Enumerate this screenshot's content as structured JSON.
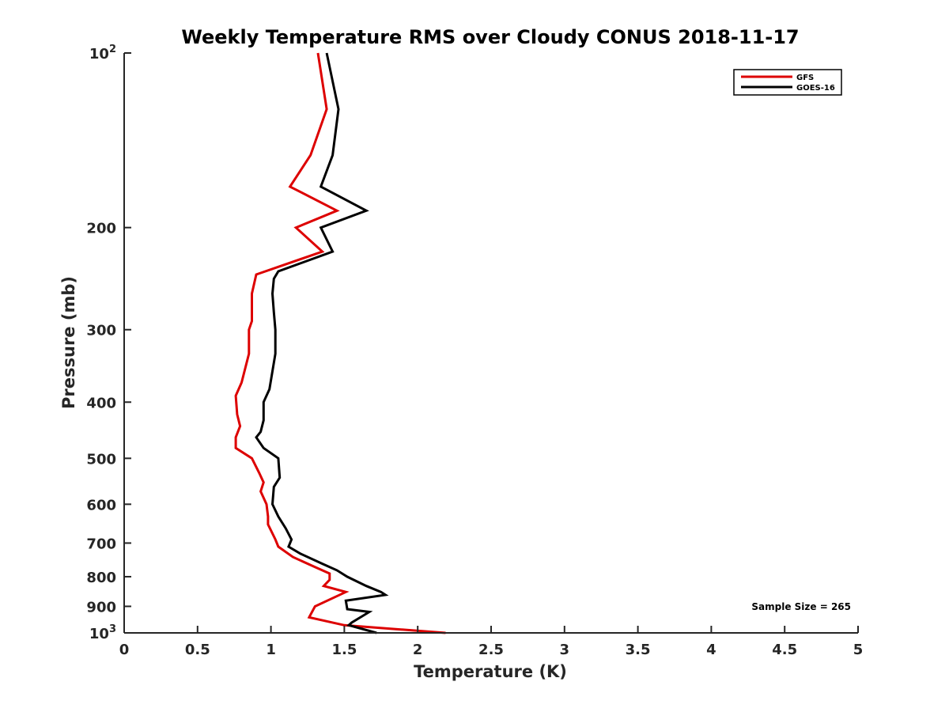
{
  "chart_data": {
    "type": "line",
    "title": "Weekly Temperature RMS over Cloudy CONUS 2018-11-17",
    "xlabel": "Temperature (K)",
    "ylabel": "Pressure (mb)",
    "xlim": [
      0,
      5
    ],
    "ylim": [
      100,
      1000
    ],
    "y_scale": "log",
    "y_inverted": true,
    "x_ticks": [
      "0",
      "0.5",
      "1",
      "1.5",
      "2",
      "2.5",
      "3",
      "3.5",
      "4",
      "4.5",
      "5"
    ],
    "x_tick_values": [
      0,
      0.5,
      1,
      1.5,
      2,
      2.5,
      3,
      3.5,
      4,
      4.5,
      5
    ],
    "y_ticks": [
      {
        "value": 100,
        "base": "10",
        "exp": "2"
      },
      {
        "value": 200,
        "label": "200"
      },
      {
        "value": 300,
        "label": "300"
      },
      {
        "value": 400,
        "label": "400"
      },
      {
        "value": 500,
        "label": "500"
      },
      {
        "value": 600,
        "label": "600"
      },
      {
        "value": 700,
        "label": "700"
      },
      {
        "value": 800,
        "label": "800"
      },
      {
        "value": 900,
        "label": "900"
      },
      {
        "value": 1000,
        "base": "10",
        "exp": "3"
      }
    ],
    "grid": false,
    "legend_position": "top-right",
    "annotation": "Sample Size = 265",
    "series": [
      {
        "name": "GFS",
        "color": "#dd0000",
        "points": [
          {
            "x": 1.32,
            "y": 100
          },
          {
            "x": 1.38,
            "y": 125
          },
          {
            "x": 1.27,
            "y": 150
          },
          {
            "x": 1.13,
            "y": 170
          },
          {
            "x": 1.45,
            "y": 187
          },
          {
            "x": 1.17,
            "y": 200
          },
          {
            "x": 1.35,
            "y": 220
          },
          {
            "x": 0.9,
            "y": 241
          },
          {
            "x": 0.87,
            "y": 260
          },
          {
            "x": 0.87,
            "y": 290
          },
          {
            "x": 0.85,
            "y": 300
          },
          {
            "x": 0.85,
            "y": 330
          },
          {
            "x": 0.8,
            "y": 370
          },
          {
            "x": 0.76,
            "y": 390
          },
          {
            "x": 0.77,
            "y": 420
          },
          {
            "x": 0.79,
            "y": 440
          },
          {
            "x": 0.76,
            "y": 460
          },
          {
            "x": 0.76,
            "y": 480
          },
          {
            "x": 0.87,
            "y": 500
          },
          {
            "x": 0.92,
            "y": 530
          },
          {
            "x": 0.95,
            "y": 550
          },
          {
            "x": 0.93,
            "y": 570
          },
          {
            "x": 0.97,
            "y": 600
          },
          {
            "x": 0.98,
            "y": 630
          },
          {
            "x": 0.98,
            "y": 650
          },
          {
            "x": 1.03,
            "y": 690
          },
          {
            "x": 1.05,
            "y": 710
          },
          {
            "x": 1.15,
            "y": 740
          },
          {
            "x": 1.3,
            "y": 770
          },
          {
            "x": 1.4,
            "y": 790
          },
          {
            "x": 1.4,
            "y": 810
          },
          {
            "x": 1.36,
            "y": 830
          },
          {
            "x": 1.51,
            "y": 850
          },
          {
            "x": 1.3,
            "y": 900
          },
          {
            "x": 1.26,
            "y": 940
          },
          {
            "x": 1.5,
            "y": 970
          },
          {
            "x": 1.85,
            "y": 985
          },
          {
            "x": 2.19,
            "y": 1000
          }
        ]
      },
      {
        "name": "GOES-16",
        "color": "#000000",
        "points": [
          {
            "x": 1.38,
            "y": 100
          },
          {
            "x": 1.46,
            "y": 125
          },
          {
            "x": 1.42,
            "y": 150
          },
          {
            "x": 1.34,
            "y": 170
          },
          {
            "x": 1.65,
            "y": 187
          },
          {
            "x": 1.34,
            "y": 200
          },
          {
            "x": 1.42,
            "y": 220
          },
          {
            "x": 1.05,
            "y": 238
          },
          {
            "x": 1.02,
            "y": 245
          },
          {
            "x": 1.01,
            "y": 260
          },
          {
            "x": 1.02,
            "y": 280
          },
          {
            "x": 1.03,
            "y": 300
          },
          {
            "x": 1.03,
            "y": 330
          },
          {
            "x": 0.99,
            "y": 380
          },
          {
            "x": 0.95,
            "y": 400
          },
          {
            "x": 0.95,
            "y": 430
          },
          {
            "x": 0.93,
            "y": 450
          },
          {
            "x": 0.9,
            "y": 460
          },
          {
            "x": 0.95,
            "y": 480
          },
          {
            "x": 1.05,
            "y": 500
          },
          {
            "x": 1.06,
            "y": 540
          },
          {
            "x": 1.02,
            "y": 560
          },
          {
            "x": 1.01,
            "y": 600
          },
          {
            "x": 1.05,
            "y": 630
          },
          {
            "x": 1.1,
            "y": 660
          },
          {
            "x": 1.14,
            "y": 690
          },
          {
            "x": 1.12,
            "y": 710
          },
          {
            "x": 1.2,
            "y": 730
          },
          {
            "x": 1.35,
            "y": 760
          },
          {
            "x": 1.45,
            "y": 780
          },
          {
            "x": 1.52,
            "y": 800
          },
          {
            "x": 1.65,
            "y": 830
          },
          {
            "x": 1.75,
            "y": 850
          },
          {
            "x": 1.78,
            "y": 860
          },
          {
            "x": 1.51,
            "y": 880
          },
          {
            "x": 1.52,
            "y": 910
          },
          {
            "x": 1.67,
            "y": 920
          },
          {
            "x": 1.55,
            "y": 960
          },
          {
            "x": 1.53,
            "y": 970
          },
          {
            "x": 1.72,
            "y": 1000
          }
        ]
      }
    ]
  }
}
